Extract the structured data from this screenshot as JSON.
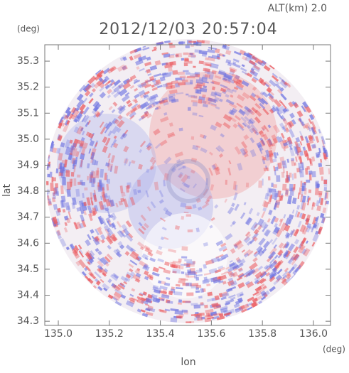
{
  "chart_data": {
    "type": "heatmap",
    "title": "2012/12/03 20:57:04",
    "annotation": "ALT(km) 2.0",
    "x_label": "lon",
    "x_unit": "(deg)",
    "y_label": "lat",
    "y_unit": "(deg)",
    "xlim": [
      134.947,
      136.067
    ],
    "ylim": [
      34.284,
      35.363
    ],
    "xticks": [
      {
        "value": 135,
        "label": "135.0"
      },
      135.2,
      135.4,
      135.6,
      135.8,
      {
        "value": 136,
        "label": "136.0"
      }
    ],
    "yticks": [
      34.3,
      34.4,
      34.5,
      34.6,
      34.7,
      34.8,
      34.9,
      {
        "value": 35,
        "label": "35.0"
      },
      35.1,
      35.2,
      35.3
    ]
  }
}
